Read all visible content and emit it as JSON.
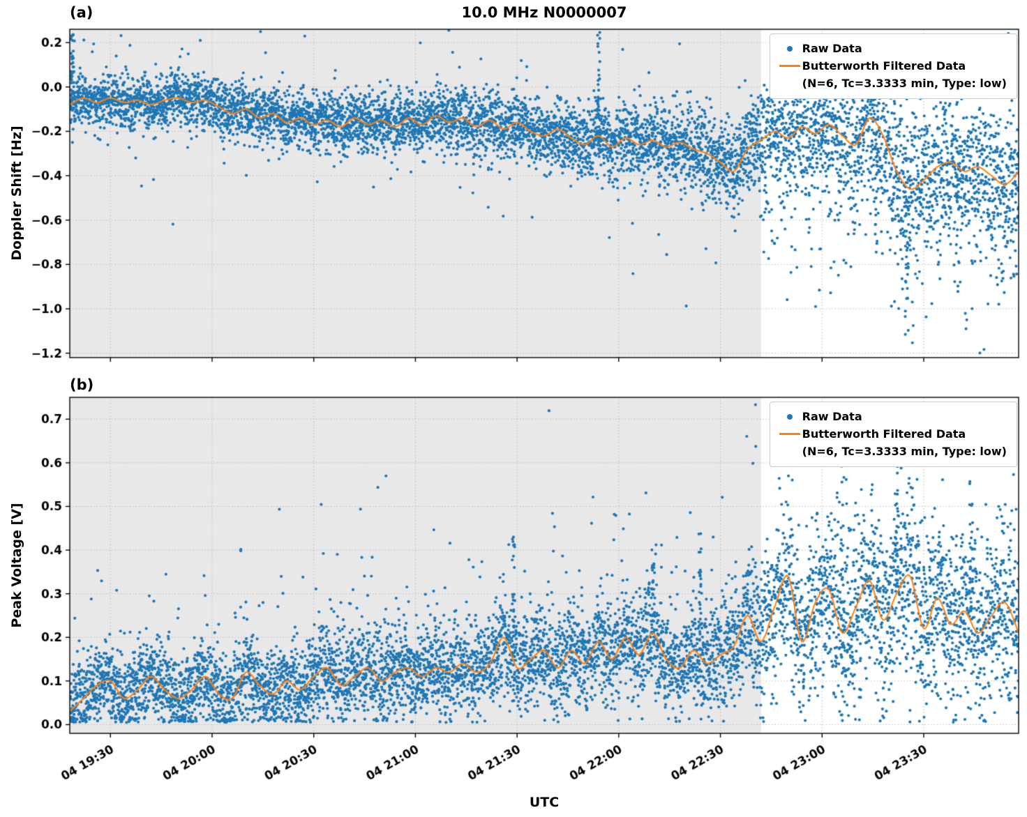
{
  "header": {
    "title": "10.0 MHz N0000007",
    "panel_a_tag": "(a)",
    "panel_b_tag": "(b)",
    "xlabel": "UTC"
  },
  "legend": {
    "raw_label": "Raw Data",
    "filtered_label": "Butterworth Filtered Data",
    "filtered_params": "(N=6, Tc=3.3333 min, Type: low)"
  },
  "style": {
    "raw_color": "#1f77b4",
    "filtered_color": "#ff7f0e",
    "shade_color": "#e8e8e8",
    "grid_color": "#bcbcbc",
    "axis_color": "#000000"
  },
  "chart_data": {
    "type": "scatter",
    "title": "10.0 MHz N0000007",
    "xlabel": "UTC",
    "x_axis": {
      "range_minutes": [
        0,
        280
      ],
      "ticks": [
        {
          "minute": 12,
          "label": "04 19:30"
        },
        {
          "minute": 42,
          "label": "04 20:00"
        },
        {
          "minute": 72,
          "label": "04 20:30"
        },
        {
          "minute": 102,
          "label": "04 21:00"
        },
        {
          "minute": 132,
          "label": "04 21:30"
        },
        {
          "minute": 162,
          "label": "04 22:00"
        },
        {
          "minute": 192,
          "label": "04 22:30"
        },
        {
          "minute": 222,
          "label": "04 23:00"
        },
        {
          "minute": 252,
          "label": "04 23:30"
        }
      ],
      "shade_end_minute": 204
    },
    "panels": [
      {
        "id": "a",
        "tag": "(a)",
        "ylabel": "Doppler Shift [Hz]",
        "ylim": [
          -1.22,
          0.26
        ],
        "yticks": [
          {
            "v": 0.2,
            "label": "0.2"
          },
          {
            "v": 0.0,
            "label": "0.0"
          },
          {
            "v": -0.2,
            "label": "−0.2"
          },
          {
            "v": -0.4,
            "label": "−0.4"
          },
          {
            "v": -0.6,
            "label": "−0.6"
          },
          {
            "v": -0.8,
            "label": "−0.8"
          },
          {
            "v": -1.0,
            "label": "−1.0"
          },
          {
            "v": -1.2,
            "label": "−1.2"
          }
        ],
        "filtered_line": {
          "t_start": 0,
          "t_step": 4,
          "y": [
            -0.08,
            -0.05,
            -0.07,
            -0.05,
            -0.07,
            -0.06,
            -0.08,
            -0.06,
            -0.05,
            -0.07,
            -0.06,
            -0.09,
            -0.12,
            -0.1,
            -0.14,
            -0.12,
            -0.16,
            -0.14,
            -0.17,
            -0.15,
            -0.18,
            -0.14,
            -0.17,
            -0.15,
            -0.18,
            -0.14,
            -0.17,
            -0.13,
            -0.16,
            -0.14,
            -0.18,
            -0.15,
            -0.19,
            -0.16,
            -0.2,
            -0.22,
            -0.19,
            -0.23,
            -0.26,
            -0.22,
            -0.27,
            -0.23,
            -0.26,
            -0.24,
            -0.27,
            -0.25,
            -0.28,
            -0.3,
            -0.34,
            -0.38,
            -0.28,
            -0.24,
            -0.2,
            -0.23,
            -0.18,
            -0.21,
            -0.17,
            -0.22,
            -0.26,
            -0.14,
            -0.22,
            -0.38,
            -0.46,
            -0.42,
            -0.36,
            -0.34,
            -0.38,
            -0.36,
            -0.4,
            -0.44,
            -0.38
          ]
        },
        "raw_scatter": {
          "count": 7000,
          "seed": 7,
          "noise_t": [
            0,
            60,
            120,
            180,
            200,
            212,
            240,
            280
          ],
          "noise_std": [
            0.055,
            0.06,
            0.07,
            0.09,
            0.1,
            0.13,
            0.16,
            0.16
          ],
          "outlier_prob": 0.04,
          "outlier_scale": 3.2,
          "neg_skew_after_minute": 205,
          "neg_skew_prob": 0.12,
          "neg_skew_max": 0.55,
          "streaks": [
            {
              "t": 0.8,
              "to": 0.24,
              "count": 35
            },
            {
              "t": 156,
              "to": 0.27,
              "count": 30
            },
            {
              "t": 238,
              "to": -0.75,
              "count": 15
            },
            {
              "t": 247,
              "to": -1.15,
              "count": 25
            },
            {
              "t": 262,
              "to": -0.95,
              "count": 18
            }
          ]
        }
      },
      {
        "id": "b",
        "tag": "(b)",
        "ylabel": "Peak Voltage [V]",
        "ylim": [
          -0.02,
          0.75
        ],
        "yticks": [
          {
            "v": 0.0,
            "label": "0.0"
          },
          {
            "v": 0.1,
            "label": "0.1"
          },
          {
            "v": 0.2,
            "label": "0.2"
          },
          {
            "v": 0.3,
            "label": "0.3"
          },
          {
            "v": 0.4,
            "label": "0.4"
          },
          {
            "v": 0.5,
            "label": "0.5"
          },
          {
            "v": 0.6,
            "label": "0.6"
          },
          {
            "v": 0.7,
            "label": "0.7"
          }
        ],
        "filtered_line": {
          "t_start": 0,
          "t_step": 4,
          "y": [
            0.03,
            0.06,
            0.09,
            0.1,
            0.06,
            0.08,
            0.11,
            0.08,
            0.06,
            0.08,
            0.11,
            0.07,
            0.06,
            0.12,
            0.09,
            0.07,
            0.1,
            0.08,
            0.11,
            0.13,
            0.09,
            0.11,
            0.13,
            0.1,
            0.12,
            0.13,
            0.11,
            0.13,
            0.12,
            0.14,
            0.12,
            0.14,
            0.2,
            0.13,
            0.15,
            0.17,
            0.13,
            0.17,
            0.14,
            0.19,
            0.15,
            0.2,
            0.16,
            0.21,
            0.15,
            0.13,
            0.17,
            0.14,
            0.16,
            0.18,
            0.25,
            0.19,
            0.27,
            0.34,
            0.19,
            0.28,
            0.31,
            0.21,
            0.27,
            0.33,
            0.24,
            0.3,
            0.34,
            0.22,
            0.29,
            0.23,
            0.26,
            0.21,
            0.25,
            0.28,
            0.21
          ]
        },
        "raw_scatter": {
          "count": 7000,
          "seed": 11,
          "noise_t": [
            0,
            120,
            180,
            200,
            208,
            240,
            280
          ],
          "noise_std": [
            0.045,
            0.05,
            0.06,
            0.07,
            0.09,
            0.1,
            0.1
          ],
          "outlier_prob": 0.03,
          "outlier_scale": 2.2,
          "spike_prob": 0.05,
          "spike_scale": 3.2,
          "floor": 0.005,
          "streaks": [
            {
              "t": 131,
              "to": 0.44,
              "count": 25
            },
            {
              "t": 172,
              "to": 0.37,
              "count": 20
            },
            {
              "t": 186,
              "to": 0.44,
              "count": 22
            },
            {
              "t": 228,
              "to": 0.62,
              "count": 25
            },
            {
              "t": 244,
              "to": 0.6,
              "count": 22
            },
            {
              "t": 266,
              "to": 0.56,
              "count": 20
            }
          ]
        }
      }
    ]
  }
}
